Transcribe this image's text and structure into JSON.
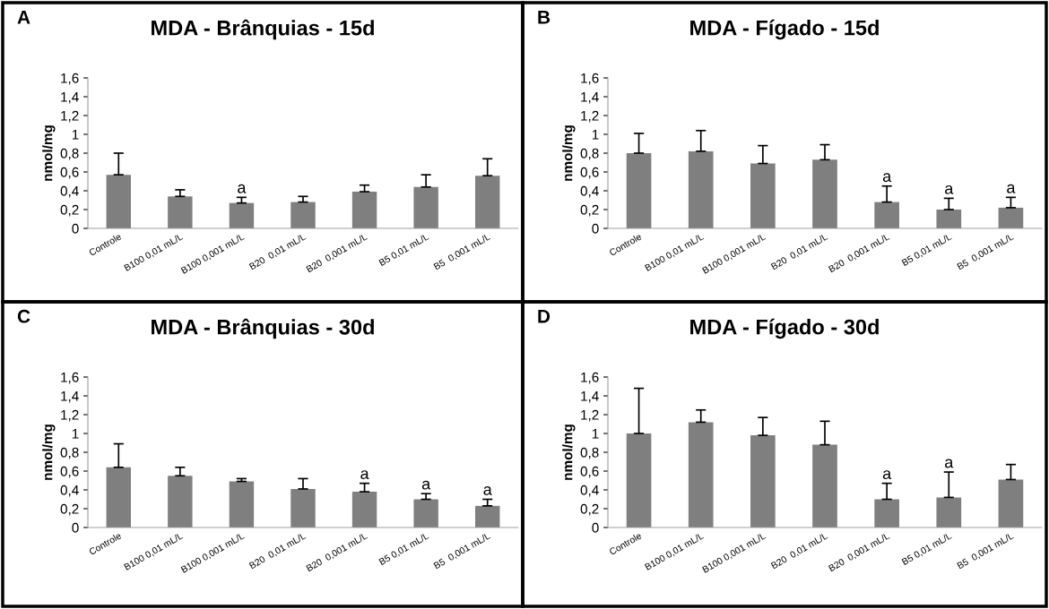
{
  "chart_data": [
    {
      "type": "bar",
      "title": "MDA - Brânquias - 15d",
      "ylabel": "nmol/mg",
      "annotations": [
        "A"
      ],
      "color": "#7f7f7f",
      "categories": [
        "Controle",
        "B100 0,01 mL/L",
        "B100 0,001 mL/L",
        "B20  0,01 mL/L",
        "B20  0,001 mL/L",
        "B5 0,01 mL/L",
        "B5  0,001 mL/L"
      ],
      "values": [
        0.57,
        0.34,
        0.27,
        0.28,
        0.39,
        0.44,
        0.56
      ],
      "errors": [
        [
          0.57,
          0.8
        ],
        [
          0.34,
          0.41
        ],
        [
          0.27,
          0.33
        ],
        [
          0.28,
          0.34
        ],
        [
          0.39,
          0.46
        ],
        [
          0.44,
          0.57
        ],
        [
          0.56,
          0.74
        ]
      ],
      "value_labels": [
        null,
        null,
        "a",
        null,
        null,
        null,
        null
      ],
      "ylim": [
        0,
        1.6
      ],
      "yticks": [
        0,
        {
          "value": 0.2,
          "label": "0,2"
        },
        {
          "value": 0.4,
          "label": "0,4"
        },
        {
          "value": 0.6,
          "label": "0,6"
        },
        {
          "value": 0.8,
          "label": "0,8"
        },
        1,
        {
          "value": 1.2,
          "label": "1,2"
        },
        {
          "value": 1.4,
          "label": "1,4"
        },
        {
          "value": 1.6,
          "label": "1,6"
        }
      ]
    },
    {
      "type": "bar",
      "title": "MDA - Fígado - 15d",
      "ylabel": "nmol/mg",
      "annotations": [
        "B"
      ],
      "color": "#7f7f7f",
      "categories": [
        "Controle",
        "B100 0,01 mL/L",
        "B100 0,001 mL/L",
        "B20  0,01 mL/L",
        "B20  0,001 mL/L",
        "B5 0,01 mL/L",
        "B5  0,001 mL/L"
      ],
      "values": [
        0.8,
        0.82,
        0.69,
        0.73,
        0.28,
        0.2,
        0.22
      ],
      "errors": [
        [
          0.8,
          1.01
        ],
        [
          0.82,
          1.04
        ],
        [
          0.69,
          0.88
        ],
        [
          0.73,
          0.89
        ],
        [
          0.28,
          0.45
        ],
        [
          0.2,
          0.32
        ],
        [
          0.22,
          0.33
        ]
      ],
      "value_labels": [
        null,
        null,
        null,
        null,
        "a",
        "a",
        "a"
      ],
      "ylim": [
        0,
        1.6
      ],
      "yticks": [
        0,
        {
          "value": 0.2,
          "label": "0,2"
        },
        {
          "value": 0.4,
          "label": "0,4"
        },
        {
          "value": 0.6,
          "label": "0,6"
        },
        {
          "value": 0.8,
          "label": "0,8"
        },
        1,
        {
          "value": 1.2,
          "label": "1,2"
        },
        {
          "value": 1.4,
          "label": "1,4"
        },
        {
          "value": 1.6,
          "label": "1,6"
        }
      ]
    },
    {
      "type": "bar",
      "title": "MDA - Brânquias - 30d",
      "ylabel": "nmol/mg",
      "annotations": [
        "C"
      ],
      "color": "#7f7f7f",
      "categories": [
        "Controle",
        "B100 0,01 mL/L",
        "B100 0,001 mL/L",
        "B20  0,01 mL/L",
        "B20  0,001 mL/L",
        "B5 0,01 mL/L",
        "B5  0,001 mL/L"
      ],
      "values": [
        0.64,
        0.55,
        0.49,
        0.41,
        0.38,
        0.3,
        0.23
      ],
      "errors": [
        [
          0.64,
          0.89
        ],
        [
          0.55,
          0.64
        ],
        [
          0.49,
          0.52
        ],
        [
          0.41,
          0.52
        ],
        [
          0.38,
          0.47
        ],
        [
          0.3,
          0.36
        ],
        [
          0.23,
          0.3
        ]
      ],
      "value_labels": [
        null,
        null,
        null,
        null,
        "a",
        "a",
        "a"
      ],
      "ylim": [
        0,
        1.6
      ],
      "yticks": [
        0,
        {
          "value": 0.2,
          "label": "0,2"
        },
        {
          "value": 0.4,
          "label": "0,4"
        },
        {
          "value": 0.6,
          "label": "0,6"
        },
        {
          "value": 0.8,
          "label": "0,8"
        },
        1,
        {
          "value": 1.2,
          "label": "1,2"
        },
        {
          "value": 1.4,
          "label": "1,4"
        },
        {
          "value": 1.6,
          "label": "1,6"
        }
      ]
    },
    {
      "type": "bar",
      "title": "MDA - Fígado - 30d",
      "ylabel": "nmol/mg",
      "annotations": [
        "D"
      ],
      "color": "#7f7f7f",
      "categories": [
        "Controle",
        "B100 0,01 mL/L",
        "B100 0,001 mL/L",
        "B20  0,01 mL/L",
        "B20  0,001 mL/L",
        "B5 0,01 mL/L",
        "B5  0,001 mL/L"
      ],
      "values": [
        1.0,
        1.12,
        0.98,
        0.88,
        0.3,
        0.32,
        0.51
      ],
      "errors": [
        [
          1.0,
          1.48
        ],
        [
          1.12,
          1.25
        ],
        [
          0.98,
          1.17
        ],
        [
          0.88,
          1.13
        ],
        [
          0.3,
          0.47
        ],
        [
          0.32,
          0.59
        ],
        [
          0.51,
          0.67
        ]
      ],
      "value_labels": [
        null,
        null,
        null,
        null,
        "a",
        "a",
        null
      ],
      "ylim": [
        0,
        1.6
      ],
      "yticks": [
        0,
        {
          "value": 0.2,
          "label": "0,2"
        },
        {
          "value": 0.4,
          "label": "0,4"
        },
        {
          "value": 0.6,
          "label": "0,6"
        },
        {
          "value": 0.8,
          "label": "0,8"
        },
        1,
        {
          "value": 1.2,
          "label": "1,2"
        },
        {
          "value": 1.4,
          "label": "1,4"
        },
        {
          "value": 1.6,
          "label": "1,6"
        }
      ]
    }
  ]
}
